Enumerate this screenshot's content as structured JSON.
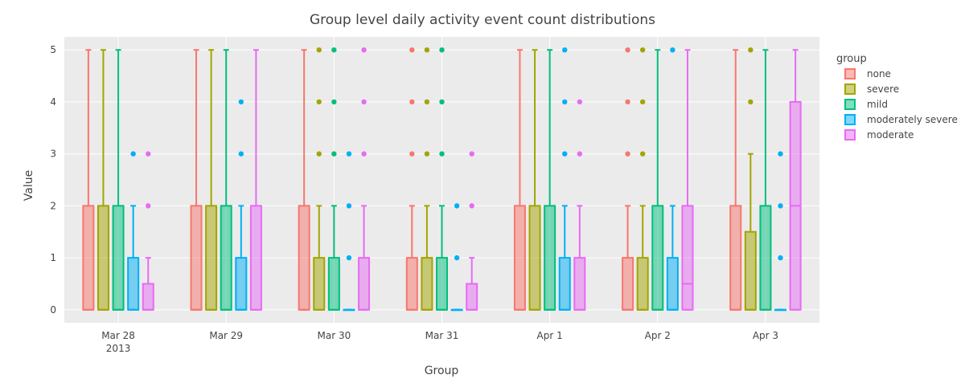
{
  "chart_data": {
    "type": "box",
    "title": "Group level daily activity event count distributions",
    "xlabel": "Group",
    "ylabel": "Value",
    "ylim": [
      -0.25,
      5.25
    ],
    "yticks": [
      0,
      1,
      2,
      3,
      4,
      5
    ],
    "categories": [
      "Mar 28",
      "Mar 29",
      "Mar 30",
      "Mar 31",
      "Apr 1",
      "Apr 2",
      "Apr 3"
    ],
    "category_sublabels": [
      "2013",
      "",
      "",
      "",
      "",
      "",
      ""
    ],
    "legend_title": "group",
    "legend_position": "right",
    "grid": true,
    "series": [
      {
        "name": "none",
        "color": "#F8766D",
        "boxes": [
          {
            "q1": 0,
            "median": 0,
            "q3": 2,
            "lower": 0,
            "upper": 5,
            "outliers": []
          },
          {
            "q1": 0,
            "median": 0,
            "q3": 2,
            "lower": 0,
            "upper": 5,
            "outliers": []
          },
          {
            "q1": 0,
            "median": 0,
            "q3": 2,
            "lower": 0,
            "upper": 5,
            "outliers": []
          },
          {
            "q1": 0,
            "median": 0,
            "q3": 1,
            "lower": 0,
            "upper": 2,
            "outliers": [
              3,
              4,
              5
            ]
          },
          {
            "q1": 0,
            "median": 0,
            "q3": 2,
            "lower": 0,
            "upper": 5,
            "outliers": []
          },
          {
            "q1": 0,
            "median": 0,
            "q3": 1,
            "lower": 0,
            "upper": 2,
            "outliers": [
              3,
              4,
              5
            ]
          },
          {
            "q1": 0,
            "median": 0,
            "q3": 2,
            "lower": 0,
            "upper": 5,
            "outliers": []
          }
        ]
      },
      {
        "name": "severe",
        "color": "#A3A500",
        "boxes": [
          {
            "q1": 0,
            "median": 0,
            "q3": 2,
            "lower": 0,
            "upper": 5,
            "outliers": []
          },
          {
            "q1": 0,
            "median": 0,
            "q3": 2,
            "lower": 0,
            "upper": 5,
            "outliers": []
          },
          {
            "q1": 0,
            "median": 0,
            "q3": 1,
            "lower": 0,
            "upper": 2,
            "outliers": [
              3,
              4,
              5
            ]
          },
          {
            "q1": 0,
            "median": 0,
            "q3": 1,
            "lower": 0,
            "upper": 2,
            "outliers": [
              3,
              4,
              5
            ]
          },
          {
            "q1": 0,
            "median": 0,
            "q3": 2,
            "lower": 0,
            "upper": 5,
            "outliers": []
          },
          {
            "q1": 0,
            "median": 0,
            "q3": 1,
            "lower": 0,
            "upper": 2,
            "outliers": [
              3,
              4,
              5
            ]
          },
          {
            "q1": 0,
            "median": 0,
            "q3": 1.5,
            "lower": 0,
            "upper": 3,
            "outliers": [
              4,
              5
            ]
          }
        ]
      },
      {
        "name": "mild",
        "color": "#00BF7D",
        "boxes": [
          {
            "q1": 0,
            "median": 0,
            "q3": 2,
            "lower": 0,
            "upper": 5,
            "outliers": []
          },
          {
            "q1": 0,
            "median": 0,
            "q3": 2,
            "lower": 0,
            "upper": 5,
            "outliers": []
          },
          {
            "q1": 0,
            "median": 0,
            "q3": 1,
            "lower": 0,
            "upper": 2,
            "outliers": [
              3,
              4,
              5
            ]
          },
          {
            "q1": 0,
            "median": 0,
            "q3": 1,
            "lower": 0,
            "upper": 2,
            "outliers": [
              3,
              4,
              5
            ]
          },
          {
            "q1": 0,
            "median": 0,
            "q3": 2,
            "lower": 0,
            "upper": 5,
            "outliers": []
          },
          {
            "q1": 0,
            "median": 0,
            "q3": 2,
            "lower": 0,
            "upper": 5,
            "outliers": []
          },
          {
            "q1": 0,
            "median": 0,
            "q3": 2,
            "lower": 0,
            "upper": 5,
            "outliers": []
          }
        ]
      },
      {
        "name": "moderately severe",
        "color": "#00B0F6",
        "boxes": [
          {
            "q1": 0,
            "median": 0,
            "q3": 1,
            "lower": 0,
            "upper": 2,
            "outliers": [
              3
            ]
          },
          {
            "q1": 0,
            "median": 0,
            "q3": 1,
            "lower": 0,
            "upper": 2,
            "outliers": [
              3,
              4
            ]
          },
          {
            "q1": 0,
            "median": 0,
            "q3": 0,
            "lower": 0,
            "upper": 0,
            "outliers": [
              1,
              2,
              3
            ]
          },
          {
            "q1": 0,
            "median": 0,
            "q3": 0,
            "lower": 0,
            "upper": 0,
            "outliers": [
              1,
              2
            ]
          },
          {
            "q1": 0,
            "median": 0,
            "q3": 1,
            "lower": 0,
            "upper": 2,
            "outliers": [
              3,
              4,
              5
            ]
          },
          {
            "q1": 0,
            "median": 0,
            "q3": 1,
            "lower": 0,
            "upper": 2,
            "outliers": [
              5
            ]
          },
          {
            "q1": 0,
            "median": 0,
            "q3": 0,
            "lower": 0,
            "upper": 0,
            "outliers": [
              1,
              2,
              3
            ]
          }
        ]
      },
      {
        "name": "moderate",
        "color": "#E76BF3",
        "boxes": [
          {
            "q1": 0,
            "median": 0,
            "q3": 0.5,
            "lower": 0,
            "upper": 1,
            "outliers": [
              2,
              3
            ]
          },
          {
            "q1": 0,
            "median": 0,
            "q3": 2,
            "lower": 0,
            "upper": 5,
            "outliers": []
          },
          {
            "q1": 0,
            "median": 0,
            "q3": 1,
            "lower": 0,
            "upper": 2,
            "outliers": [
              3,
              4,
              5
            ]
          },
          {
            "q1": 0,
            "median": 0,
            "q3": 0.5,
            "lower": 0,
            "upper": 1,
            "outliers": [
              2,
              3
            ]
          },
          {
            "q1": 0,
            "median": 0,
            "q3": 1,
            "lower": 0,
            "upper": 2,
            "outliers": [
              3,
              4
            ]
          },
          {
            "q1": 0,
            "median": 0.5,
            "q3": 2,
            "lower": 0,
            "upper": 5,
            "outliers": []
          },
          {
            "q1": 0,
            "median": 2,
            "q3": 4,
            "lower": 0,
            "upper": 5,
            "outliers": []
          }
        ]
      }
    ]
  }
}
